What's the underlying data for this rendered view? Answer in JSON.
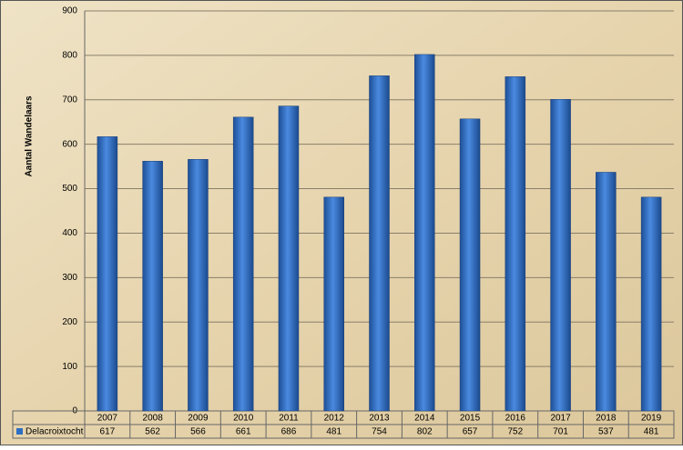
{
  "chart_data": {
    "type": "bar",
    "y_axis_label": "Aantal Wandelaars",
    "categories": [
      "2007",
      "2008",
      "2009",
      "2010",
      "2011",
      "2012",
      "2013",
      "2014",
      "2015",
      "2016",
      "2017",
      "2018",
      "2019"
    ],
    "series": [
      {
        "name": "Delacroixtocht",
        "color": "#2f6fc4",
        "values": [
          617,
          562,
          566,
          661,
          686,
          481,
          754,
          802,
          657,
          752,
          701,
          537,
          481
        ]
      }
    ],
    "ylim": [
      0,
      900
    ],
    "yticks": [
      0,
      100,
      200,
      300,
      400,
      500,
      600,
      700,
      800,
      900
    ],
    "grid": true
  }
}
